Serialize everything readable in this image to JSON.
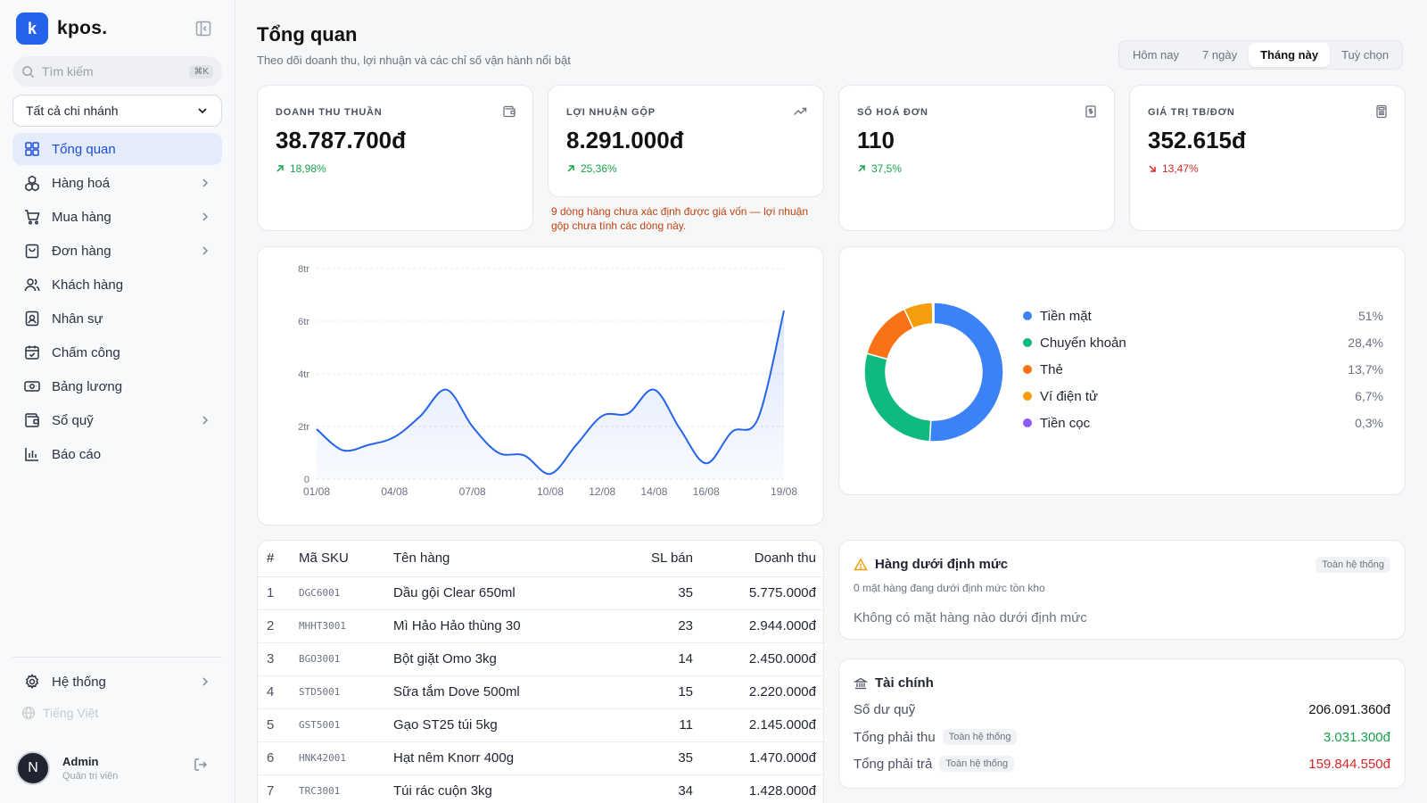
{
  "brand": {
    "logo_letter": "k",
    "name": "kpos."
  },
  "search": {
    "placeholder": "Tìm kiếm",
    "shortcut": "⌘K"
  },
  "branch": {
    "selected": "Tất cả chi nhánh"
  },
  "nav": [
    {
      "label": "Tổng quan",
      "icon": "dashboard-icon",
      "active": true,
      "arrow": false
    },
    {
      "label": "Hàng hoá",
      "icon": "boxes-icon",
      "arrow": true
    },
    {
      "label": "Mua hàng",
      "icon": "cart-icon",
      "arrow": true
    },
    {
      "label": "Đơn hàng",
      "icon": "shopping-bag-icon",
      "arrow": true
    },
    {
      "label": "Khách hàng",
      "icon": "users-icon",
      "arrow": false
    },
    {
      "label": "Nhân sự",
      "icon": "id-badge-icon",
      "arrow": false
    },
    {
      "label": "Chấm công",
      "icon": "calendar-check-icon",
      "arrow": false
    },
    {
      "label": "Bảng lương",
      "icon": "banknote-icon",
      "arrow": false
    },
    {
      "label": "Sổ quỹ",
      "icon": "wallet-icon",
      "arrow": true
    },
    {
      "label": "Báo cáo",
      "icon": "bar-chart-icon",
      "arrow": false
    }
  ],
  "system": {
    "label": "Hệ thống"
  },
  "language": {
    "label": "Tiếng Việt"
  },
  "user": {
    "initial": "N",
    "name": "Admin",
    "role": "Quản trị viên"
  },
  "header": {
    "title": "Tổng quan",
    "subtitle": "Theo dõi doanh thu, lợi nhuận và các chỉ số vận hành nổi bật",
    "ranges": [
      "Hôm nay",
      "7 ngày",
      "Tháng này",
      "Tuỳ chọn"
    ],
    "active_range": "Tháng này"
  },
  "kpis": [
    {
      "label": "DOANH THU THUẦN",
      "value": "38.787.700đ",
      "delta": "18,98%",
      "trend": "up",
      "icon": "wallet-icon"
    },
    {
      "label": "LỢI NHUẬN GỘP",
      "value": "8.291.000đ",
      "delta": "25,36%",
      "trend": "up",
      "icon": "trending-up-icon"
    },
    {
      "label": "SỐ HOÁ ĐƠN",
      "value": "110",
      "delta": "37,5%",
      "trend": "up",
      "icon": "receipt-icon"
    },
    {
      "label": "GIÁ TRỊ TB/ĐƠN",
      "value": "352.615đ",
      "delta": "13,47%",
      "trend": "down",
      "icon": "calculator-icon"
    }
  ],
  "profit_warning": "9 dòng hàng chưa xác định được giá vốn — lợi nhuận gộp chưa tính các dòng này.",
  "chart_data": [
    {
      "type": "area",
      "x": [
        "01/08",
        "02/08",
        "03/08",
        "04/08",
        "05/08",
        "06/08",
        "07/08",
        "08/08",
        "09/08",
        "10/08",
        "11/08",
        "12/08",
        "13/08",
        "14/08",
        "15/08",
        "16/08",
        "17/08",
        "18/08",
        "19/08"
      ],
      "x_ticks": [
        "01/08",
        "04/08",
        "07/08",
        "10/08",
        "12/08",
        "14/08",
        "16/08",
        "19/08"
      ],
      "values": [
        1.9,
        1.1,
        1.3,
        1.6,
        2.4,
        3.4,
        2.0,
        1.0,
        0.9,
        0.2,
        1.3,
        2.4,
        2.5,
        3.4,
        1.9,
        0.6,
        1.8,
        2.3,
        6.4
      ],
      "y_ticks": [
        "0",
        "2tr",
        "4tr",
        "6tr",
        "8tr"
      ],
      "ylim": [
        0,
        8
      ],
      "color": "#2563eb",
      "grid": true
    },
    {
      "type": "pie",
      "labels": [
        "Tiền mặt",
        "Chuyển khoản",
        "Thẻ",
        "Ví điện tử",
        "Tiền cọc"
      ],
      "values": [
        51,
        28.4,
        13.7,
        6.7,
        0.3
      ],
      "value_labels": [
        "51%",
        "28,4%",
        "13,7%",
        "6,7%",
        "0,3%"
      ],
      "colors": [
        "#3b82f6",
        "#10b981",
        "#f97316",
        "#f59e0b",
        "#8b5cf6"
      ],
      "legend": "right"
    }
  ],
  "top_products": {
    "columns": [
      "#",
      "Mã SKU",
      "Tên hàng",
      "SL bán",
      "Doanh thu"
    ],
    "rows": [
      [
        "1",
        "DGC6001",
        "Dầu gội Clear 650ml",
        "35",
        "5.775.000đ"
      ],
      [
        "2",
        "MHHT3001",
        "Mì Hảo Hảo thùng 30",
        "23",
        "2.944.000đ"
      ],
      [
        "3",
        "BGO3001",
        "Bột giặt Omo 3kg",
        "14",
        "2.450.000đ"
      ],
      [
        "4",
        "STD5001",
        "Sữa tắm Dove 500ml",
        "15",
        "2.220.000đ"
      ],
      [
        "5",
        "GST5001",
        "Gạo ST25 túi 5kg",
        "11",
        "2.145.000đ"
      ],
      [
        "6",
        "HNK42001",
        "Hạt nêm Knorr 400g",
        "35",
        "1.470.000đ"
      ],
      [
        "7",
        "TRC3001",
        "Túi rác cuộn 3kg",
        "34",
        "1.428.000đ"
      ]
    ]
  },
  "low_stock": {
    "title": "Hàng dưới định mức",
    "badge": "Toàn hệ thống",
    "subtitle": "0 mặt hàng đang dưới định mức tồn kho",
    "empty": "Không có mặt hàng nào dưới định mức"
  },
  "finance": {
    "title": "Tài chính",
    "rows": [
      {
        "label": "Số dư quỹ",
        "badge": "",
        "value": "206.091.360đ",
        "color": "#111111"
      },
      {
        "label": "Tổng phải thu",
        "badge": "Toàn hệ thống",
        "value": "3.031.300đ",
        "color": "#16a34a"
      },
      {
        "label": "Tổng phải trả",
        "badge": "Toàn hệ thống",
        "value": "159.844.550đ",
        "color": "#dc2626"
      }
    ]
  }
}
